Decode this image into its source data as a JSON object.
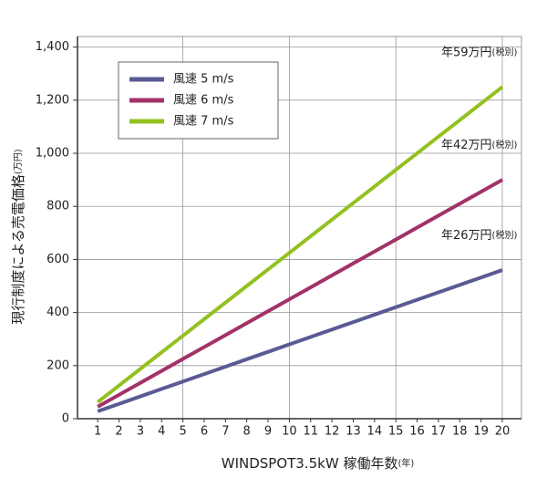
{
  "chart_data": {
    "type": "line",
    "x_label": "WINDSPOT3.5kW 稼働年数",
    "x_label_unit": "(年)",
    "y_label": "現行制度による売電価格",
    "y_label_unit": "(万円)",
    "x": [
      1,
      2,
      3,
      4,
      5,
      6,
      7,
      8,
      9,
      10,
      11,
      12,
      13,
      14,
      15,
      16,
      17,
      18,
      19,
      20
    ],
    "xlim": [
      0.05,
      20.9
    ],
    "xticks": [
      1,
      2,
      3,
      4,
      5,
      6,
      7,
      8,
      9,
      10,
      11,
      12,
      13,
      14,
      15,
      16,
      17,
      18,
      19,
      20
    ],
    "xgrid": [
      5,
      10,
      15,
      20
    ],
    "ylim": [
      0,
      1440
    ],
    "yticks": [
      0,
      200,
      400,
      600,
      800,
      {
        "value": 1000,
        "label": "1,000"
      },
      {
        "value": 1200,
        "label": "1,200"
      },
      {
        "value": 1400,
        "label": "1,400"
      }
    ],
    "grid": true,
    "legend": "top-left",
    "series": [
      {
        "name": "風速 5 m/s",
        "color": "#5a5a95",
        "values": [
          28,
          56,
          84,
          112,
          140,
          168,
          196,
          224,
          252,
          280,
          308,
          336,
          364,
          392,
          420,
          448,
          476,
          504,
          532,
          560
        ]
      },
      {
        "name": "風速 6 m/s",
        "color": "#a23268",
        "values": [
          45,
          90,
          135,
          180,
          225,
          270,
          315,
          360,
          405,
          450,
          495,
          540,
          585,
          630,
          675,
          720,
          765,
          810,
          855,
          900
        ]
      },
      {
        "name": "風速 7 m/s",
        "color": "#94c11f",
        "values": [
          62.5,
          125,
          187.5,
          250,
          312.5,
          375,
          437.5,
          500,
          562.5,
          625,
          687.5,
          750,
          812.5,
          875,
          937.5,
          1000,
          1062.5,
          1125,
          1187.5,
          1250
        ]
      }
    ],
    "annotations": [
      {
        "text": "年59万円",
        "note": "(税別)",
        "series": 2
      },
      {
        "text": "年42万円",
        "note": "(税別)",
        "series": 1
      },
      {
        "text": "年26万円",
        "note": "(税別)",
        "series": 0
      }
    ]
  }
}
